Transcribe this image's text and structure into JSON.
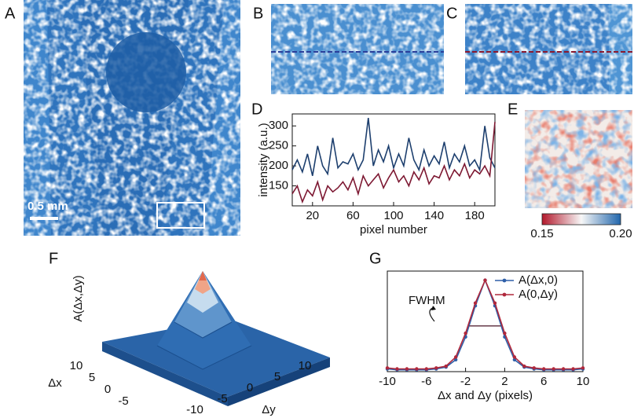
{
  "panel_labels": [
    "A",
    "B",
    "C",
    "D",
    "E",
    "F",
    "G"
  ],
  "image": {
    "scale_bar": "0.5 mm"
  },
  "colorbar": {
    "ticks": [
      0.15,
      {
        "value": 0.2,
        "label": "0.20"
      }
    ]
  },
  "surface": {
    "zlabel": "A(Δx,Δy)",
    "xlabel": "Δx",
    "ylabel": "Δy",
    "xticks": [
      10,
      5,
      0,
      -5
    ],
    "yticks": [
      -10,
      -5,
      0,
      5,
      10
    ]
  },
  "chart_data": [
    {
      "type": "line",
      "xlabel": "pixel number",
      "ylabel": "intensity (a.u.)",
      "x": [
        0,
        5,
        10,
        15,
        20,
        25,
        30,
        35,
        40,
        45,
        50,
        55,
        60,
        65,
        70,
        75,
        80,
        85,
        90,
        95,
        100,
        105,
        110,
        115,
        120,
        125,
        130,
        135,
        140,
        145,
        150,
        155,
        160,
        165,
        170,
        175,
        180,
        185,
        190,
        195,
        200
      ],
      "series": [
        {
          "color": "#1d3f6e",
          "values": [
            190,
            215,
            185,
            230,
            175,
            250,
            200,
            180,
            270,
            195,
            210,
            205,
            230,
            190,
            215,
            320,
            200,
            240,
            210,
            250,
            195,
            230,
            200,
            270,
            215,
            190,
            240,
            200,
            225,
            205,
            260,
            195,
            230,
            210,
            250,
            200,
            215,
            190,
            300,
            220,
            195
          ]
        },
        {
          "color": "#7d1832",
          "values": [
            130,
            150,
            110,
            140,
            125,
            160,
            115,
            150,
            135,
            145,
            160,
            140,
            170,
            130,
            175,
            150,
            165,
            180,
            145,
            170,
            190,
            160,
            175,
            150,
            185,
            165,
            195,
            155,
            175,
            170,
            200,
            165,
            190,
            175,
            205,
            170,
            190,
            180,
            200,
            175,
            310
          ]
        }
      ],
      "xlim": [
        0,
        200
      ],
      "xticks": [
        20,
        60,
        100,
        140,
        180
      ],
      "ylim": [
        100,
        330
      ],
      "yticks": [
        150,
        200,
        250,
        300
      ],
      "markers": false
    },
    {
      "type": "line",
      "xlabel": "Δx and Δy (pixels)",
      "annotation": "FWHM",
      "x": [
        -10,
        -9,
        -8,
        -7,
        -6,
        -5,
        -4,
        -3,
        -2,
        -1,
        0,
        1,
        2,
        3,
        4,
        5,
        6,
        7,
        8,
        9,
        10
      ],
      "series": [
        {
          "name": "A(Δx,0)",
          "color": "#2e5fa8",
          "values": [
            0.03,
            0.02,
            0.02,
            0.02,
            0.02,
            0.03,
            0.05,
            0.13,
            0.38,
            0.72,
            1.0,
            0.72,
            0.38,
            0.13,
            0.05,
            0.03,
            0.02,
            0.02,
            0.02,
            0.02,
            0.03
          ]
        },
        {
          "name": "A(0,Δy)",
          "color": "#b0283c",
          "values": [
            0.04,
            0.03,
            0.03,
            0.03,
            0.03,
            0.04,
            0.06,
            0.16,
            0.42,
            0.75,
            1.0,
            0.75,
            0.42,
            0.16,
            0.06,
            0.04,
            0.03,
            0.03,
            0.03,
            0.03,
            0.04
          ]
        }
      ],
      "xlim": [
        -10,
        10
      ],
      "xticks": [
        -10,
        -6,
        -2,
        2,
        6,
        10
      ],
      "ylim": [
        0,
        1.1
      ],
      "markers": true
    }
  ]
}
